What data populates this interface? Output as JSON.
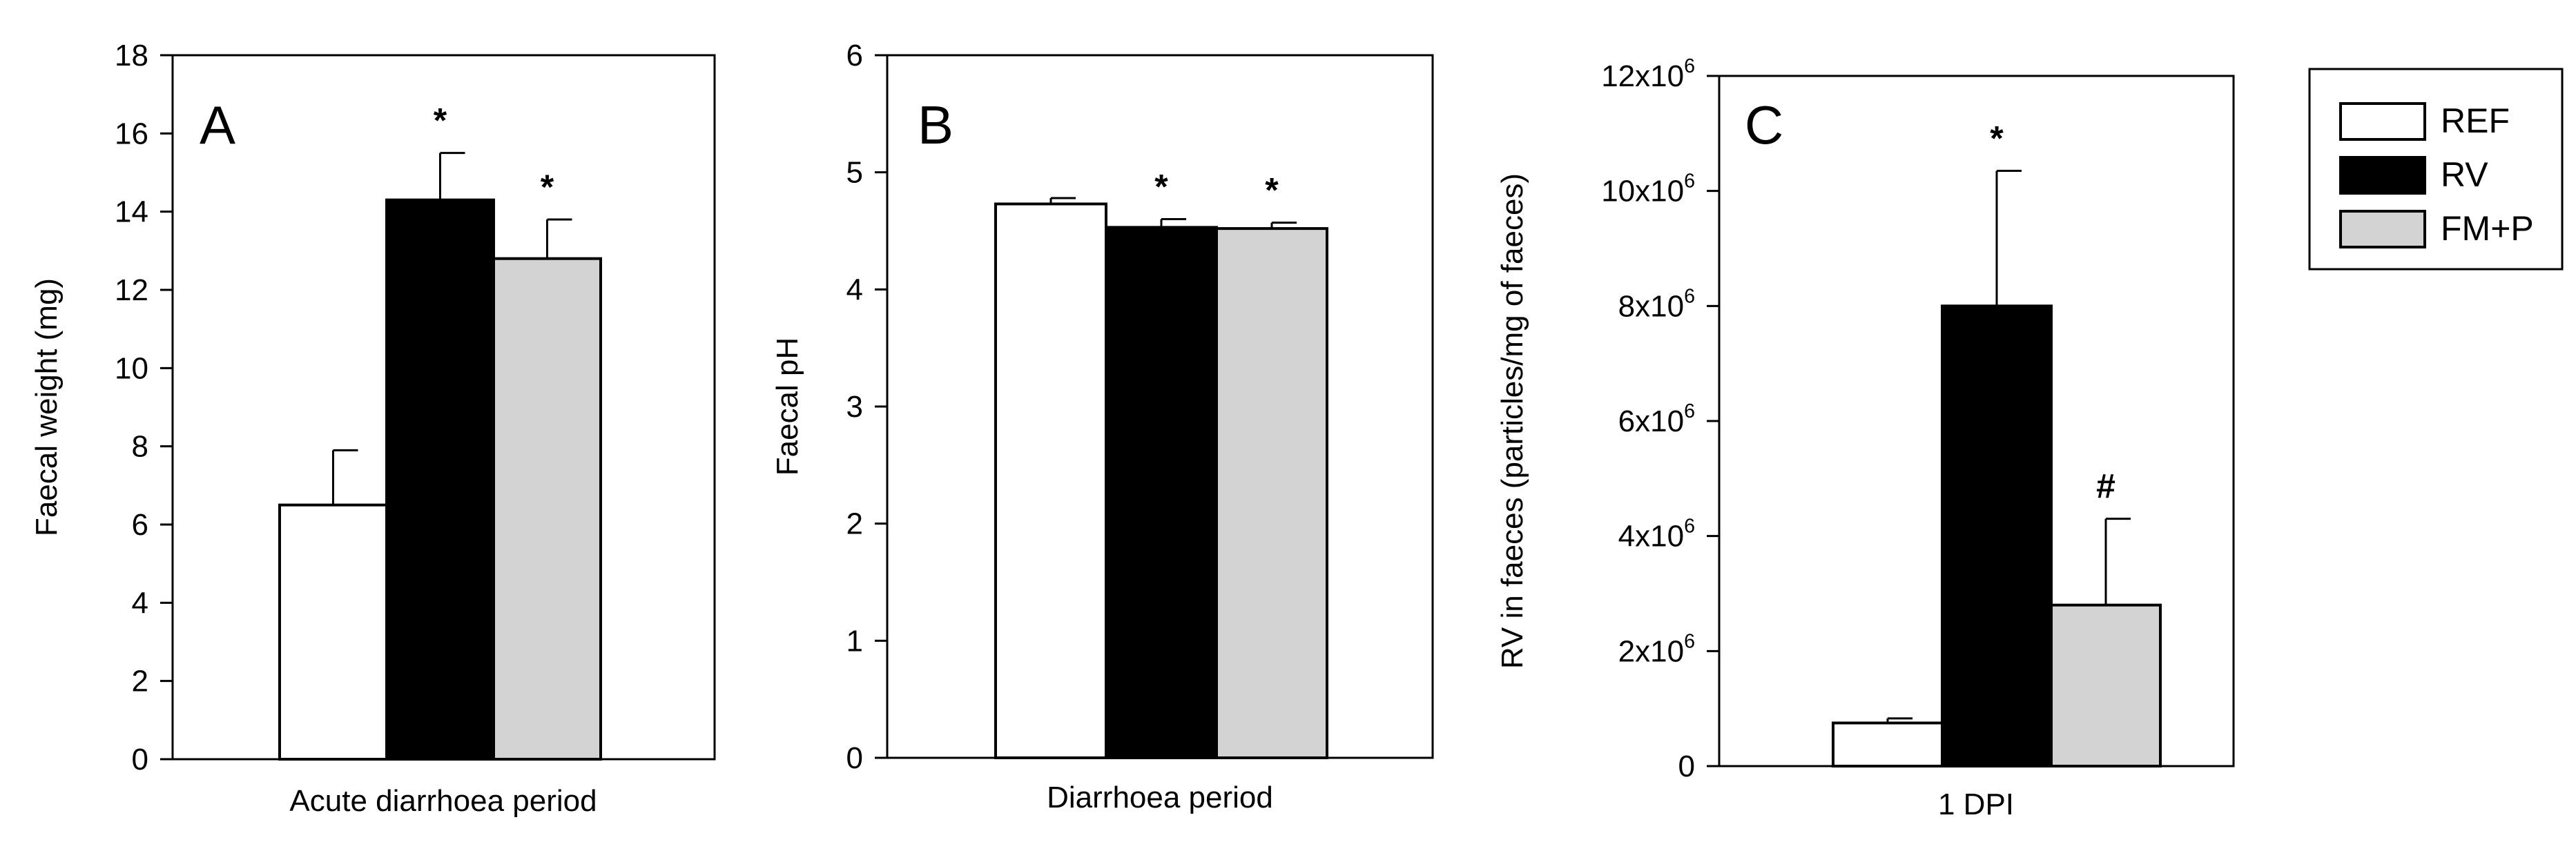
{
  "colors": {
    "REF": "#ffffff",
    "RV": "#000000",
    "FM+P": "#d3d3d3",
    "axis": "#000000"
  },
  "legend": {
    "items": [
      {
        "label": "REF",
        "color": "#ffffff"
      },
      {
        "label": "RV",
        "color": "#000000"
      },
      {
        "label": "FM+P",
        "color": "#d3d3d3"
      }
    ]
  },
  "chart_data": [
    {
      "panel": "A",
      "type": "bar",
      "ylabel": "Faecal weight (mg)",
      "xlabel": "Acute diarrhoea period",
      "ylim": [
        0,
        18
      ],
      "yticks": [
        0,
        2,
        4,
        6,
        8,
        10,
        12,
        14,
        16,
        18
      ],
      "ytick_labels": [
        "0",
        "2",
        "4",
        "6",
        "8",
        "10",
        "12",
        "14",
        "16",
        "18"
      ],
      "series": [
        {
          "name": "REF",
          "value": 6.5,
          "error": 1.4,
          "mark": ""
        },
        {
          "name": "RV",
          "value": 14.3,
          "error": 1.2,
          "mark": "*"
        },
        {
          "name": "FM+P",
          "value": 12.8,
          "error": 1.0,
          "mark": "*"
        }
      ]
    },
    {
      "panel": "B",
      "type": "bar",
      "ylabel": "Faecal pH",
      "xlabel": "Diarrhoea period",
      "ylim": [
        0,
        6
      ],
      "yticks": [
        0,
        1,
        2,
        3,
        4,
        5,
        6
      ],
      "ytick_labels": [
        "0",
        "1",
        "2",
        "3",
        "4",
        "5",
        "6"
      ],
      "series": [
        {
          "name": "REF",
          "value": 4.73,
          "error": 0.05,
          "mark": ""
        },
        {
          "name": "RV",
          "value": 4.53,
          "error": 0.07,
          "mark": "*"
        },
        {
          "name": "FM+P",
          "value": 4.52,
          "error": 0.05,
          "mark": "*"
        }
      ]
    },
    {
      "panel": "C",
      "type": "bar",
      "ylabel": "RV in faeces (particles/mg of faeces)",
      "xlabel": "1 DPI",
      "ylim": [
        0,
        12000000
      ],
      "yticks": [
        0,
        2000000,
        4000000,
        6000000,
        8000000,
        10000000,
        12000000
      ],
      "ytick_labels": [
        {
          "base": "0",
          "exp": ""
        },
        {
          "base": "2x10",
          "exp": "6"
        },
        {
          "base": "4x10",
          "exp": "6"
        },
        {
          "base": "6x10",
          "exp": "6"
        },
        {
          "base": "8x10",
          "exp": "6"
        },
        {
          "base": "10x10",
          "exp": "6"
        },
        {
          "base": "12x10",
          "exp": "6"
        }
      ],
      "series": [
        {
          "name": "REF",
          "value": 750000,
          "error": 80000,
          "mark": ""
        },
        {
          "name": "RV",
          "value": 8000000,
          "error": 2350000,
          "mark": "*"
        },
        {
          "name": "FM+P",
          "value": 2800000,
          "error": 1500000,
          "mark": "#"
        }
      ]
    }
  ]
}
